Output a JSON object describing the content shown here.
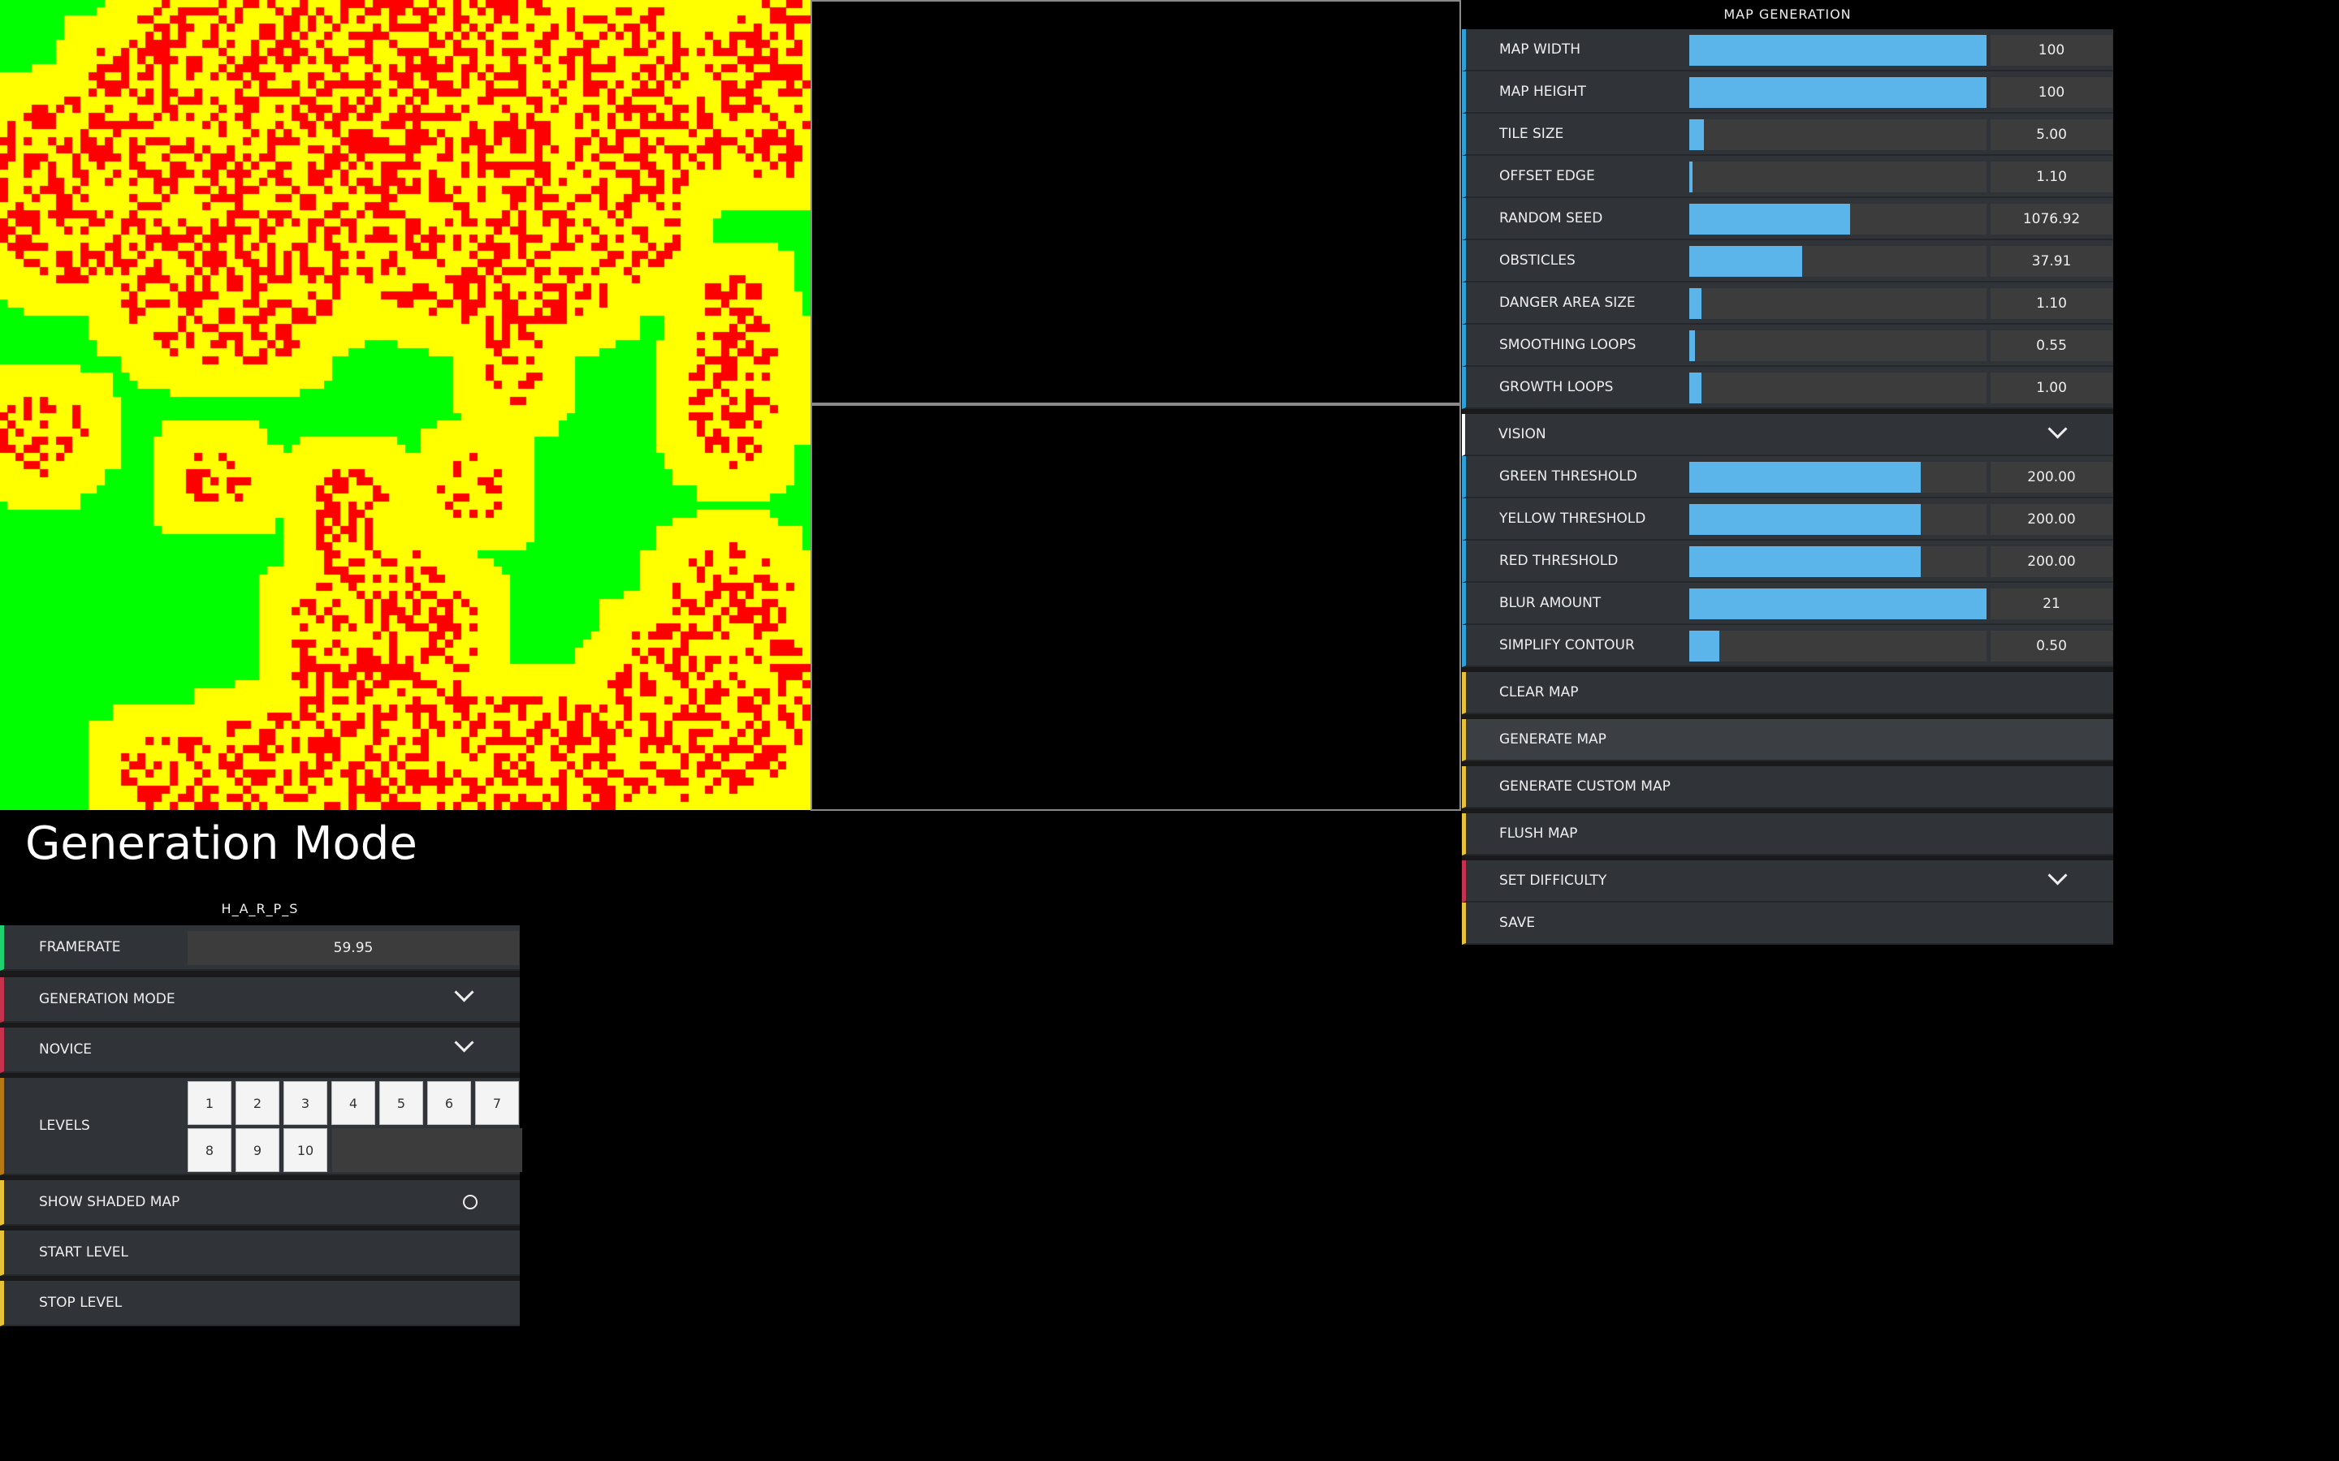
{
  "colors": {
    "green": "#00ff00",
    "yellow": "#ffff00",
    "red": "#ff0000",
    "accent": "#5bb5ea"
  },
  "title": "Generation Mode",
  "map_generation": {
    "title": "MAP GENERATION",
    "sliders": [
      {
        "label": "MAP WIDTH",
        "value": "100",
        "fill": 1.0
      },
      {
        "label": "MAP HEIGHT",
        "value": "100",
        "fill": 1.0
      },
      {
        "label": "TILE SIZE",
        "value": "5.00",
        "fill": 0.05
      },
      {
        "label": "OFFSET EDGE",
        "value": "1.10",
        "fill": 0.01
      },
      {
        "label": "RANDOM SEED",
        "value": "1076.92",
        "fill": 0.54
      },
      {
        "label": "OBSTICLES",
        "value": "37.91",
        "fill": 0.38
      },
      {
        "label": "DANGER AREA SIZE",
        "value": "1.10",
        "fill": 0.04
      },
      {
        "label": "SMOOTHING LOOPS",
        "value": "0.55",
        "fill": 0.02
      },
      {
        "label": "GROWTH LOOPS",
        "value": "1.00",
        "fill": 0.04
      }
    ]
  },
  "vision": {
    "label": "VISION",
    "sliders": [
      {
        "label": "GREEN THRESHOLD",
        "value": "200.00",
        "fill": 0.78
      },
      {
        "label": "YELLOW THRESHOLD",
        "value": "200.00",
        "fill": 0.78
      },
      {
        "label": "RED THRESHOLD",
        "value": "200.00",
        "fill": 0.78
      },
      {
        "label": "BLUR AMOUNT",
        "value": "21",
        "fill": 1.0
      },
      {
        "label": "SIMPLIFY CONTOUR",
        "value": "0.50",
        "fill": 0.1
      }
    ]
  },
  "buttons": {
    "clear_map": "CLEAR MAP",
    "generate_map": "GENERATE MAP",
    "generate_custom_map": "GENERATE CUSTOM MAP",
    "flush_map": "FLUSH MAP",
    "set_difficulty": "SET DIFFICULTY",
    "save": "SAVE"
  },
  "harps": {
    "title": "H_A_R_P_S",
    "framerate_label": "FRAMERATE",
    "framerate_value": "59.95",
    "generation_mode": "GENERATION MODE",
    "novice": "NOVICE",
    "levels_label": "LEVELS",
    "levels": [
      "1",
      "2",
      "3",
      "4",
      "5",
      "6",
      "7",
      "8",
      "9",
      "10"
    ],
    "show_shaded_map": "SHOW SHADED MAP",
    "start_level": "START LEVEL",
    "stop_level": "STOP LEVEL"
  }
}
